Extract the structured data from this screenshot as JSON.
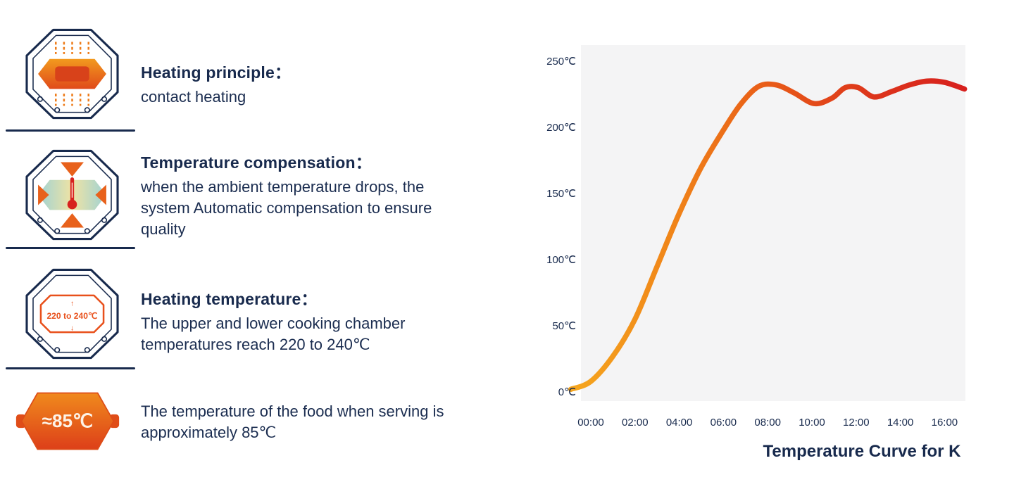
{
  "colors": {
    "navy": "#182a4d",
    "orange": "#e8541c",
    "red": "#d7221e",
    "plot_background": "#f4f4f5"
  },
  "features": [
    {
      "icon": "contact-heating-icon",
      "title": "Heating principle：",
      "description": "contact heating"
    },
    {
      "icon": "temperature-compensation-icon",
      "title": "Temperature compensation：",
      "description": "when the ambient temperature drops, the\nsystem Automatic compensation to ensure\nquality"
    },
    {
      "icon": "heating-temperature-icon",
      "title": "Heating temperature：",
      "description": "The upper and lower cooking chamber\ntemperatures reach 220 to 240℃",
      "icon_label": "220 to 240℃",
      "icon_arrows": {
        "up": "↑",
        "down": "↓"
      }
    },
    {
      "icon": "serving-temperature-icon",
      "description": "The temperature of the food when serving is\napproximately 85℃",
      "icon_label": "≈85℃"
    }
  ],
  "chart_data": {
    "type": "line",
    "title": "Temperature Curve for K",
    "x_tick_labels": [
      "00:00",
      "02:00",
      "04:00",
      "06:00",
      "08:00",
      "10:00",
      "12:00",
      "14:00",
      "16:00"
    ],
    "y_tick_labels_top_down": [
      "250℃",
      "200℃",
      "150℃",
      "100℃",
      "50℃",
      "0℃"
    ],
    "xlim_hours": [
      -1,
      17
    ],
    "ylim": [
      0,
      260
    ],
    "grid": false,
    "legend": false,
    "plot_background": "#f4f4f5",
    "line_width": 7.5,
    "line_gradient": [
      "#F5A51E",
      "#F08419",
      "#E85A18",
      "#DD361B",
      "#D7201E"
    ],
    "series": [
      {
        "name": "temperature_c",
        "x": [
          -0.9,
          0,
          1,
          2,
          3,
          4,
          5,
          6,
          6.8,
          7.6,
          8.4,
          9.2,
          10.1,
          10.9,
          11.5,
          12.1,
          12.8,
          13.6,
          14.4,
          15.2,
          16.0,
          16.9
        ],
        "values": [
          2,
          8,
          27,
          55,
          95,
          135,
          170,
          198,
          218,
          231,
          232,
          226,
          218,
          222,
          230,
          230,
          223,
          227,
          232,
          235,
          234,
          229
        ]
      }
    ]
  }
}
